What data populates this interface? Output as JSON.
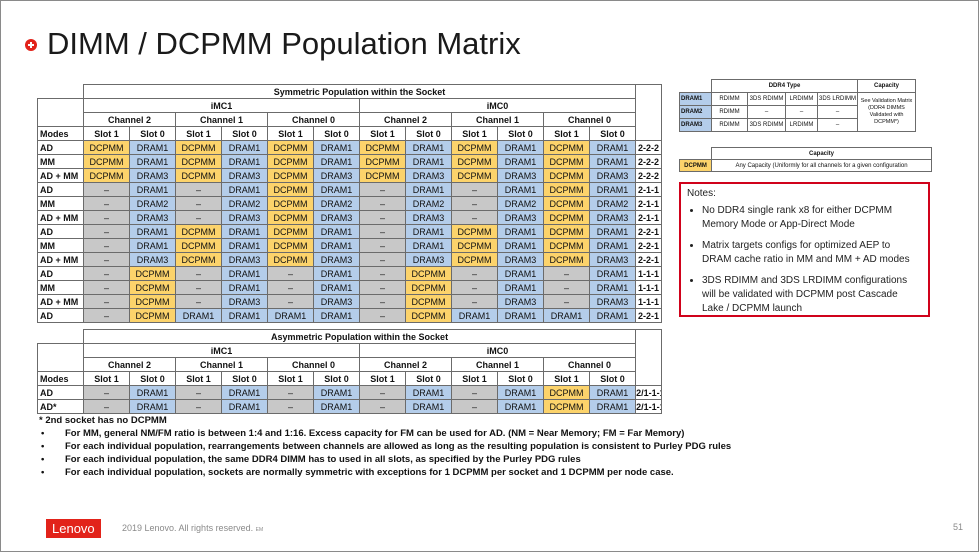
{
  "title": "DIMM / DCPMM Population Matrix",
  "symmetric": {
    "caption": "Symmetric Population within the Socket",
    "imc_headers": [
      "iMC1",
      "iMC0"
    ],
    "channel_headers": [
      "Channel 2",
      "Channel 1",
      "Channel 0",
      "Channel 2",
      "Channel 1",
      "Channel 0"
    ],
    "modes_label": "Modes",
    "slot_headers": [
      "Slot 1",
      "Slot 0",
      "Slot 1",
      "Slot 0",
      "Slot 1",
      "Slot 0",
      "Slot 1",
      "Slot 0",
      "Slot 1",
      "Slot 0",
      "Slot 1",
      "Slot 0"
    ],
    "rows": [
      {
        "mode": "AD",
        "cells": [
          "DCPMM",
          "DRAM1",
          "DCPMM",
          "DRAM1",
          "DCPMM",
          "DRAM1",
          "DCPMM",
          "DRAM1",
          "DCPMM",
          "DRAM1",
          "DCPMM",
          "DRAM1"
        ],
        "pattern": "2-2-2"
      },
      {
        "mode": "MM",
        "cells": [
          "DCPMM",
          "DRAM1",
          "DCPMM",
          "DRAM1",
          "DCPMM",
          "DRAM1",
          "DCPMM",
          "DRAM1",
          "DCPMM",
          "DRAM1",
          "DCPMM",
          "DRAM1"
        ],
        "pattern": "2-2-2"
      },
      {
        "mode": "AD + MM",
        "cells": [
          "DCPMM",
          "DRAM3",
          "DCPMM",
          "DRAM3",
          "DCPMM",
          "DRAM3",
          "DCPMM",
          "DRAM3",
          "DCPMM",
          "DRAM3",
          "DCPMM",
          "DRAM3"
        ],
        "pattern": "2-2-2"
      },
      {
        "mode": "AD",
        "cells": [
          "–",
          "DRAM1",
          "–",
          "DRAM1",
          "DCPMM",
          "DRAM1",
          "–",
          "DRAM1",
          "–",
          "DRAM1",
          "DCPMM",
          "DRAM1"
        ],
        "pattern": "2-1-1"
      },
      {
        "mode": "MM",
        "cells": [
          "–",
          "DRAM2",
          "–",
          "DRAM2",
          "DCPMM",
          "DRAM2",
          "–",
          "DRAM2",
          "–",
          "DRAM2",
          "DCPMM",
          "DRAM2"
        ],
        "pattern": "2-1-1"
      },
      {
        "mode": "AD + MM",
        "cells": [
          "–",
          "DRAM3",
          "–",
          "DRAM3",
          "DCPMM",
          "DRAM3",
          "–",
          "DRAM3",
          "–",
          "DRAM3",
          "DCPMM",
          "DRAM3"
        ],
        "pattern": "2-1-1"
      },
      {
        "mode": "AD",
        "cells": [
          "–",
          "DRAM1",
          "DCPMM",
          "DRAM1",
          "DCPMM",
          "DRAM1",
          "–",
          "DRAM1",
          "DCPMM",
          "DRAM1",
          "DCPMM",
          "DRAM1"
        ],
        "pattern": "2-2-1"
      },
      {
        "mode": "MM",
        "cells": [
          "–",
          "DRAM1",
          "DCPMM",
          "DRAM1",
          "DCPMM",
          "DRAM1",
          "–",
          "DRAM1",
          "DCPMM",
          "DRAM1",
          "DCPMM",
          "DRAM1"
        ],
        "pattern": "2-2-1"
      },
      {
        "mode": "AD + MM",
        "cells": [
          "–",
          "DRAM3",
          "DCPMM",
          "DRAM3",
          "DCPMM",
          "DRAM3",
          "–",
          "DRAM3",
          "DCPMM",
          "DRAM3",
          "DCPMM",
          "DRAM3"
        ],
        "pattern": "2-2-1"
      },
      {
        "mode": "AD",
        "cells": [
          "–",
          "DCPMM",
          "–",
          "DRAM1",
          "–",
          "DRAM1",
          "–",
          "DCPMM",
          "–",
          "DRAM1",
          "–",
          "DRAM1"
        ],
        "pattern": "1-1-1"
      },
      {
        "mode": "MM",
        "cells": [
          "–",
          "DCPMM",
          "–",
          "DRAM1",
          "–",
          "DRAM1",
          "–",
          "DCPMM",
          "–",
          "DRAM1",
          "–",
          "DRAM1"
        ],
        "pattern": "1-1-1"
      },
      {
        "mode": "AD + MM",
        "cells": [
          "–",
          "DCPMM",
          "–",
          "DRAM3",
          "–",
          "DRAM3",
          "–",
          "DCPMM",
          "–",
          "DRAM3",
          "–",
          "DRAM3"
        ],
        "pattern": "1-1-1"
      },
      {
        "mode": "AD",
        "cells": [
          "–",
          "DCPMM",
          "DRAM1",
          "DRAM1",
          "DRAM1",
          "DRAM1",
          "–",
          "DCPMM",
          "DRAM1",
          "DRAM1",
          "DRAM1",
          "DRAM1"
        ],
        "pattern": "2-2-1"
      }
    ]
  },
  "asymmetric": {
    "caption": "Asymmetric Population within the Socket",
    "imc_headers": [
      "iMC1",
      "iMC0"
    ],
    "channel_headers": [
      "Channel 2",
      "Channel 1",
      "Channel 0",
      "Channel 2",
      "Channel 1",
      "Channel 0"
    ],
    "modes_label": "Modes",
    "slot_headers": [
      "Slot 1",
      "Slot 0",
      "Slot 1",
      "Slot 0",
      "Slot 1",
      "Slot 0",
      "Slot 1",
      "Slot 0",
      "Slot 1",
      "Slot 0",
      "Slot 1",
      "Slot 0"
    ],
    "rows": [
      {
        "mode": "AD",
        "cells": [
          "–",
          "DRAM1",
          "–",
          "DRAM1",
          "–",
          "DRAM1",
          "–",
          "DRAM1",
          "–",
          "DRAM1",
          "DCPMM",
          "DRAM1"
        ],
        "pattern": "2/1-1-1"
      },
      {
        "mode": "AD*",
        "cells": [
          "–",
          "DRAM1",
          "–",
          "DRAM1",
          "–",
          "DRAM1",
          "–",
          "DRAM1",
          "–",
          "DRAM1",
          "DCPMM",
          "DRAM1"
        ],
        "pattern": "2/1-1-1"
      }
    ]
  },
  "ddr4_type": {
    "header": "DDR4 Type",
    "capacity_header": "Capacity",
    "rows": [
      {
        "label": "DRAM1",
        "types": [
          "RDIMM",
          "3DS RDIMM",
          "LRDIMM",
          "3DS LRDIMM"
        ]
      },
      {
        "label": "DRAM2",
        "types": [
          "RDIMM",
          "–",
          "–",
          "–"
        ]
      },
      {
        "label": "DRAM3",
        "types": [
          "RDIMM",
          "3DS RDIMM",
          "LRDIMM",
          "–"
        ]
      }
    ],
    "capacity_note": "See Validation Matrix (DDR4 DIMMS Validated with DCPMM*)"
  },
  "capacity_table": {
    "header": "Capacity",
    "label": "DCPMM",
    "text": "Any Capacity (Uniformly for all channels for a given configuration"
  },
  "notes": {
    "title": "Notes:",
    "items": [
      "No DDR4 single rank x8 for either DCPMM Memory Mode or App-Direct Mode",
      "Matrix targets configs for optimized AEP to DRAM cache ratio in MM and MM + AD modes",
      "3DS RDIMM and 3DS LRDIMM configurations will be validated with DCPMM post Cascade Lake / DCPMM launch"
    ]
  },
  "footnotes": {
    "star": "* 2nd socket has no DCPMM",
    "items": [
      "For MM, general NM/FM ratio is between 1:4 and 1:16. Excess capacity for FM can be used for AD. (NM = Near Memory; FM = Far Memory)",
      "For each individual population, rearrangements between channels are allowed as long as the resulting population is consistent to Purley PDG rules",
      "For each individual population, the same DDR4 DIMM has to used in all slots, as specified by the Purley PDG rules",
      "For each individual population, sockets are normally symmetric with exceptions for 1 DCPMM per socket and 1 DCPMM per node case."
    ]
  },
  "footer": {
    "logo": "Lenovo",
    "copyright": "2019 Lenovo. All rights reserved.",
    "em": "EM",
    "page_number": "51"
  },
  "colors": {
    "dcpmm": "#fcd36b",
    "dram": "#b4cdea",
    "empty": "#c8c8c8",
    "brand_red": "#e2231a",
    "notes_border": "#d0021b"
  }
}
